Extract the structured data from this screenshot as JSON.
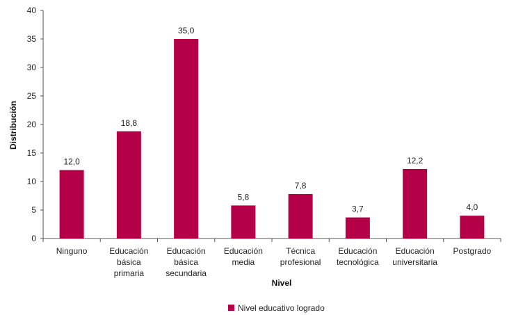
{
  "chart_data": {
    "type": "bar",
    "categories": [
      [
        "Ninguno"
      ],
      [
        "Educación",
        "básica",
        "primaria"
      ],
      [
        "Educación",
        "básica",
        "secundaria"
      ],
      [
        "Educación",
        "media"
      ],
      [
        "Técnica",
        "profesional"
      ],
      [
        "Educación",
        "tecnológica"
      ],
      [
        "Educación",
        "universitaria"
      ],
      [
        "Postgrado"
      ]
    ],
    "series": [
      {
        "name": "Nivel educativo logrado",
        "values": [
          12.0,
          18.8,
          35.0,
          5.8,
          7.8,
          3.7,
          12.2,
          4.0
        ],
        "labels": [
          "12,0",
          "18,8",
          "35,0",
          "5,8",
          "7,8",
          "3,7",
          "12,2",
          "4,0"
        ],
        "color": "#b30047"
      }
    ],
    "xlabel": "Nivel",
    "ylabel": "Distribución",
    "ylim": [
      0,
      40
    ],
    "yticks": [
      0,
      5,
      10,
      15,
      20,
      25,
      30,
      35,
      40
    ],
    "grid": false,
    "legend": "bottom"
  }
}
